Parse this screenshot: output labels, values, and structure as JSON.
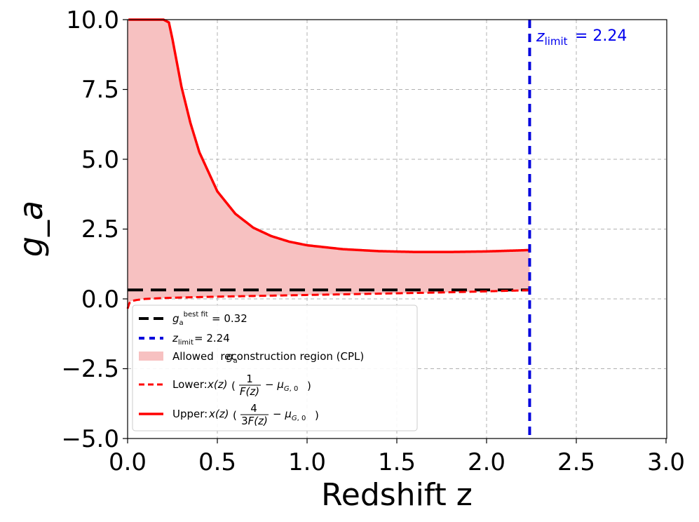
{
  "chart_data": {
    "type": "line",
    "title": "",
    "xlabel": "Redshift z",
    "ylabel": "g_a",
    "xlim": [
      0.0,
      3.0
    ],
    "ylim": [
      -5.0,
      10.0
    ],
    "xticks": [
      "0.0",
      "0.5",
      "1.0",
      "1.5",
      "2.0",
      "2.5",
      "3.0"
    ],
    "yticks": [
      "10.0",
      "7.5",
      "5.0",
      "2.5",
      "0.0",
      "−2.5",
      "−5.0"
    ],
    "grid": true,
    "colors": {
      "fill": "#f7c1c1",
      "upper": "#ff0000",
      "lower": "#ff0000",
      "bestfit": "#000000",
      "zlimit": "#0000dd"
    },
    "series": [
      {
        "name": "Upper",
        "x": [
          0.005,
          0.1,
          0.2,
          0.23,
          0.25,
          0.3,
          0.35,
          0.4,
          0.5,
          0.6,
          0.7,
          0.8,
          0.9,
          1.0,
          1.2,
          1.4,
          1.6,
          1.8,
          2.0,
          2.1,
          2.2,
          2.24
        ],
        "values": [
          10.0,
          10.0,
          10.0,
          9.9,
          9.3,
          7.6,
          6.3,
          5.25,
          3.85,
          3.05,
          2.55,
          2.25,
          2.05,
          1.92,
          1.78,
          1.71,
          1.68,
          1.68,
          1.7,
          1.72,
          1.74,
          1.75
        ]
      },
      {
        "name": "Lower",
        "x": [
          0.0,
          0.005,
          0.01,
          0.02,
          0.05,
          0.1,
          0.2,
          0.3,
          0.5,
          0.75,
          1.0,
          1.25,
          1.5,
          1.75,
          2.0,
          2.24
        ],
        "values": [
          -0.35,
          -0.25,
          -0.15,
          -0.08,
          -0.04,
          0.0,
          0.03,
          0.05,
          0.08,
          0.11,
          0.14,
          0.17,
          0.2,
          0.23,
          0.27,
          0.31
        ]
      }
    ],
    "bestfit_value": 0.32,
    "bestfit_range": [
      0.0,
      2.24
    ],
    "zlimit_value": 2.24,
    "annotation": "= 2.24",
    "legend": [
      {
        "text": "= 0.32"
      },
      {
        "text": "= 2.24"
      },
      {
        "text": "Allowed  reconstruction region (CPL)"
      },
      {
        "text": "Lower:"
      },
      {
        "text": "Upper:"
      }
    ]
  }
}
